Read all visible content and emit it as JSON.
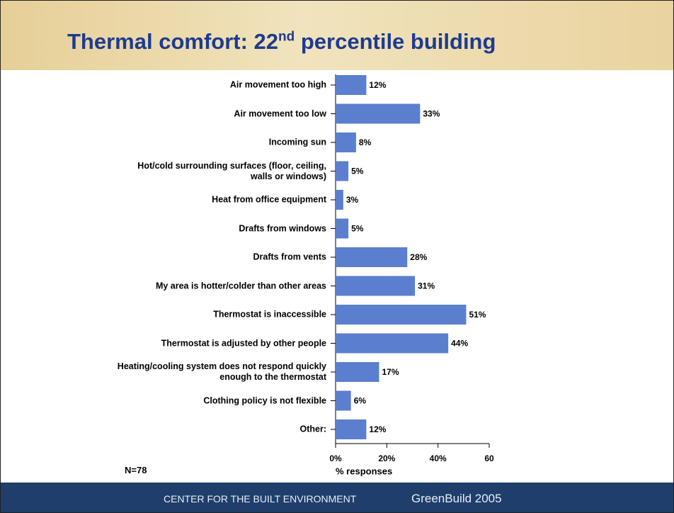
{
  "header": {
    "title_main": "Thermal comfort: 22",
    "title_sup": "nd",
    "title_rest": " percentile building"
  },
  "chart_data": {
    "type": "bar",
    "orientation": "horizontal",
    "categories": [
      "Air movement too high",
      "Air movement too low",
      "Incoming sun",
      "Hot/cold surrounding surfaces (floor, ceiling,\nwalls or windows)",
      "Heat from office equipment",
      "Drafts from windows",
      "Drafts from vents",
      "My area is hotter/colder than other areas",
      "Thermostat is inaccessible",
      "Thermostat is adjusted by other people",
      "Heating/cooling system does not respond quickly\nenough to the thermostat",
      "Clothing policy is not flexible",
      "Other:"
    ],
    "values": [
      12,
      33,
      8,
      5,
      3,
      5,
      28,
      31,
      51,
      44,
      17,
      6,
      12
    ],
    "value_labels": [
      "12%",
      "33%",
      "8%",
      "5%",
      "3%",
      "5%",
      "28%",
      "31%",
      "51%",
      "44%",
      "17%",
      "6%",
      "12%"
    ],
    "color": "#5b7fce",
    "xlim": [
      0,
      60
    ],
    "xticks": [
      {
        "value": 0,
        "label": "0%"
      },
      {
        "value": 20,
        "label": "20%"
      },
      {
        "value": 40,
        "label": "40%"
      },
      60
    ],
    "xlabel": "% responses",
    "note": "N=78"
  },
  "footer": {
    "org": "CENTER FOR THE BUILT ENVIRONMENT",
    "event": "GreenBuild 2005"
  }
}
